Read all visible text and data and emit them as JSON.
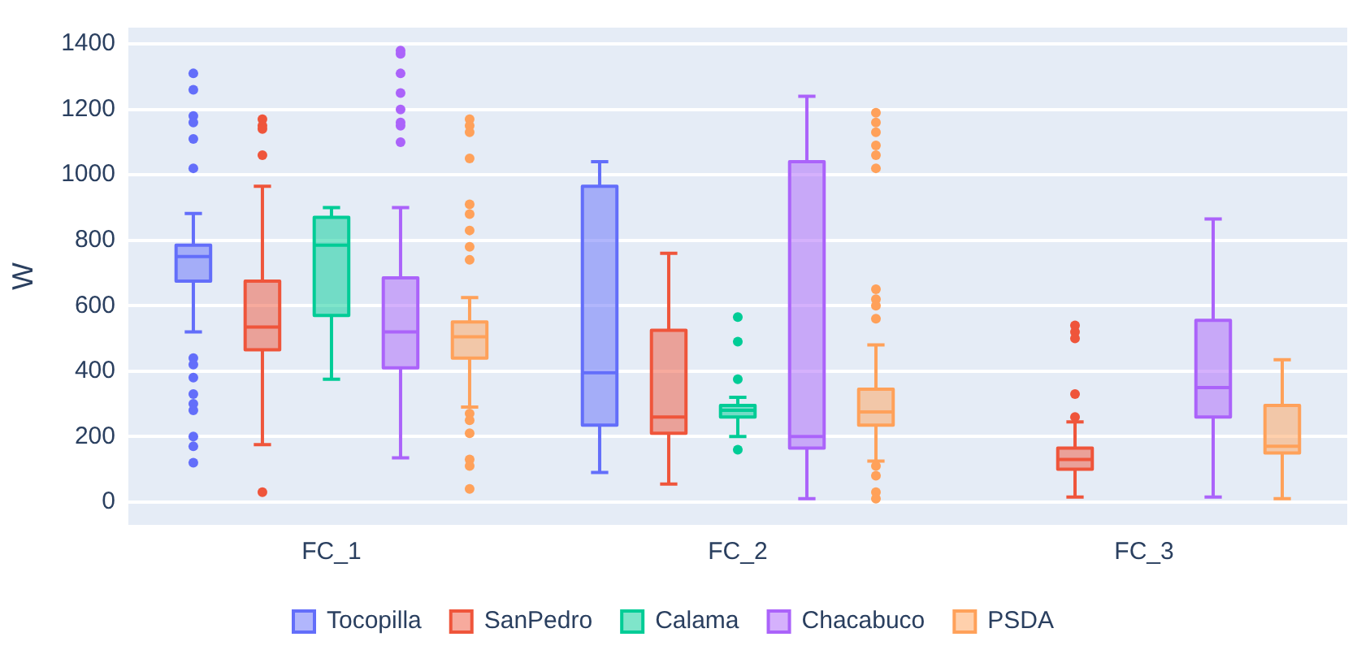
{
  "chart_data": {
    "type": "box",
    "ylabel": "W",
    "categories": [
      "FC_1",
      "FC_2",
      "FC_3"
    ],
    "ylim": [
      -70,
      1450
    ],
    "yticks": [
      0,
      200,
      400,
      600,
      800,
      {
        "value": 1000,
        "label": "1000"
      },
      {
        "value": 1200,
        "label": "1200"
      },
      {
        "value": 1400,
        "label": "1400"
      }
    ],
    "grid": "y",
    "legend": "bottom",
    "series": [
      {
        "name": "Tocopilla",
        "color": "#636efa",
        "boxes": [
          {
            "low": 520,
            "q1": 675,
            "median": 750,
            "q3": 785,
            "high": 882,
            "outliers": [
              1310,
              1260,
              1180,
              1160,
              1110,
              1020,
              440,
              420,
              380,
              330,
              300,
              280,
              200,
              170,
              120
            ]
          },
          {
            "low": 90,
            "q1": 235,
            "median": 395,
            "q3": 965,
            "high": 1040
          },
          null
        ]
      },
      {
        "name": "SanPedro",
        "color": "#ef553b",
        "boxes": [
          {
            "low": 175,
            "q1": 465,
            "median": 535,
            "q3": 675,
            "high": 965,
            "outliers": [
              1170,
              1150,
              1140,
              1060,
              30
            ]
          },
          {
            "low": 55,
            "q1": 210,
            "median": 260,
            "q3": 525,
            "high": 760
          },
          {
            "low": 15,
            "q1": 100,
            "median": 130,
            "q3": 165,
            "high": 245,
            "outliers": [
              540,
              520,
              500,
              330,
              260
            ]
          }
        ]
      },
      {
        "name": "Calama",
        "color": "#00cc96",
        "boxes": [
          {
            "low": 375,
            "q1": 570,
            "median": 785,
            "q3": 870,
            "high": 900
          },
          {
            "low": 200,
            "q1": 260,
            "median": 280,
            "q3": 295,
            "high": 320,
            "outliers": [
              565,
              490,
              375,
              160
            ]
          },
          null
        ]
      },
      {
        "name": "Chacabuco",
        "color": "#ab63fa",
        "boxes": [
          {
            "low": 135,
            "q1": 410,
            "median": 520,
            "q3": 685,
            "high": 900,
            "outliers": [
              1380,
              1370,
              1310,
              1250,
              1200,
              1160,
              1150,
              1100
            ]
          },
          {
            "low": 10,
            "q1": 165,
            "median": 200,
            "q3": 1040,
            "high": 1240
          },
          {
            "low": 15,
            "q1": 260,
            "median": 350,
            "q3": 555,
            "high": 865
          }
        ]
      },
      {
        "name": "PSDA",
        "color": "#ffa15a",
        "boxes": [
          {
            "low": 290,
            "q1": 440,
            "median": 505,
            "q3": 550,
            "high": 625,
            "outliers": [
              1170,
              1150,
              1130,
              1050,
              910,
              880,
              830,
              780,
              740,
              270,
              250,
              210,
              130,
              110,
              40
            ]
          },
          {
            "low": 125,
            "q1": 235,
            "median": 275,
            "q3": 345,
            "high": 480,
            "outliers": [
              1190,
              1160,
              1130,
              1090,
              1060,
              1020,
              650,
              620,
              600,
              560,
              110,
              80,
              30,
              10
            ]
          },
          {
            "low": 10,
            "q1": 150,
            "median": 170,
            "q3": 295,
            "high": 435
          }
        ]
      }
    ]
  }
}
